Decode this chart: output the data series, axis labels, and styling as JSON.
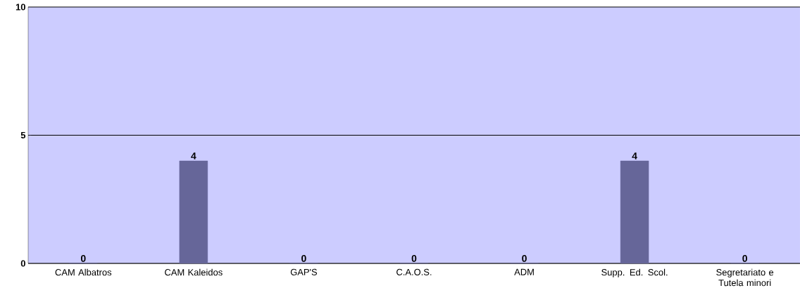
{
  "chart_data": {
    "type": "bar",
    "categories": [
      "CAM Albatros",
      "CAM Kaleidos",
      "GAP'S",
      "C.A.O.S.",
      "ADM",
      "Supp. Ed. Scol.",
      "Segretariato e Tutela minori"
    ],
    "values": [
      0,
      4,
      0,
      0,
      0,
      4,
      0
    ],
    "value_labels": [
      "0",
      "4",
      "0",
      "0",
      "0",
      "4",
      "0"
    ],
    "color": "#666699",
    "ylim": [
      0,
      10
    ],
    "yticks": [
      0,
      5,
      10
    ],
    "grid": "y"
  }
}
